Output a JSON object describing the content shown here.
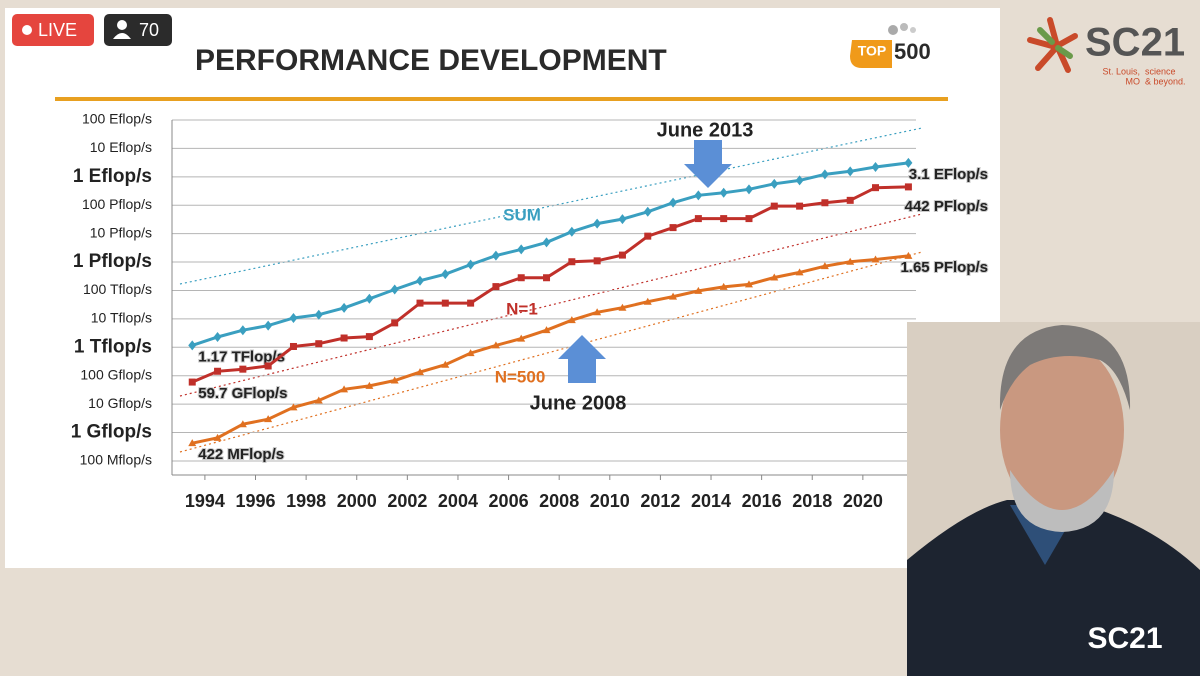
{
  "stream": {
    "live": "LIVE",
    "viewers": "70"
  },
  "logos": {
    "top500_a": "TOP",
    "top500_b": "500",
    "sc21": "SC21",
    "city": "St. Louis,",
    "state": "MO",
    "tag_a": "science",
    "tag_b": "& beyond.",
    "watermark": "SC21"
  },
  "chart_data": {
    "type": "line",
    "title": "PERFORMANCE DEVELOPMENT",
    "log_y": true,
    "grid": true,
    "xlim": [
      1992.7,
      2022.1
    ],
    "xticks": [
      1994,
      1996,
      1998,
      2000,
      2002,
      2004,
      2006,
      2008,
      2010,
      2012,
      2014,
      2016,
      2018,
      2020
    ],
    "ylim": [
      32000000.0,
      1e+20
    ],
    "yticks": [
      {
        "value": 100000000.0,
        "label": "100 Mflop/s"
      },
      {
        "value": 1000000000.0,
        "label": "1 Gflop/s"
      },
      {
        "value": 10000000000.0,
        "label": "10 Gflop/s"
      },
      {
        "value": 100000000000.0,
        "label": "100 Gflop/s"
      },
      {
        "value": 1000000000000.0,
        "label": "1 Tflop/s"
      },
      {
        "value": 10000000000000.0,
        "label": "10 Tflop/s"
      },
      {
        "value": 100000000000000.0,
        "label": "100 Tflop/s"
      },
      {
        "value": 1000000000000000.0,
        "label": "1 Pflop/s"
      },
      {
        "value": 1e+16,
        "label": "10 Pflop/s"
      },
      {
        "value": 1e+17,
        "label": "100 Pflop/s"
      },
      {
        "value": 1e+18,
        "label": "1 Eflop/s"
      },
      {
        "value": 1e+19,
        "label": "10 Eflop/s"
      },
      {
        "value": 1e+20,
        "label": "100 Eflop/s"
      }
    ],
    "x": [
      1993.5,
      1994.5,
      1995.5,
      1996.5,
      1997.5,
      1998.5,
      1999.5,
      2000.5,
      2001.5,
      2002.5,
      2003.5,
      2004.5,
      2005.5,
      2006.5,
      2007.5,
      2008.5,
      2009.5,
      2010.5,
      2011.5,
      2012.5,
      2013.5,
      2014.5,
      2015.5,
      2016.5,
      2017.5,
      2018.5,
      2019.5,
      2020.5,
      2021.8
    ],
    "series": [
      {
        "name": "SUM",
        "color": "#3a9fc0",
        "marker": "diamond",
        "values": [
          1170000000000.0,
          2300000000000.0,
          4000000000000.0,
          5800000000000.0,
          10700000000000.0,
          14000000000000.0,
          24400000000000.0,
          51000000000000.0,
          108000000000000.0,
          220000000000000.0,
          375000000000000.0,
          813000000000000.0,
          1690000000000000.0,
          2790000000000000.0,
          4920000000000000.0,
          1.17e+16,
          2.26e+16,
          3.24e+16,
          5.89e+16,
          1.23e+17,
          2.23e+17,
          2.74e+17,
          3.63e+17,
          5.67e+17,
          7.49e+17,
          1.22e+18,
          1.56e+18,
          2.22e+18,
          3.1e+18
        ],
        "value_labels": [
          "1.17 TFlop/s",
          null,
          null,
          null,
          null,
          null,
          null,
          null,
          null,
          null,
          null,
          null,
          null,
          null,
          null,
          null,
          null,
          null,
          null,
          null,
          null,
          null,
          null,
          null,
          null,
          null,
          null,
          null,
          "3.1 EFlop/s"
        ]
      },
      {
        "name": "N=1",
        "color": "#c0302a",
        "marker": "square",
        "values": [
          59700000000.0,
          143400000000.0,
          170000000000.0,
          220000000000.0,
          1068000000000.0,
          1338000000000.0,
          2121000000000.0,
          2379000000000.0,
          7226000000000.0,
          35860000000000.0,
          35860000000000.0,
          35860000000000.0,
          136800000000000.0,
          280600000000000.0,
          280600000000000.0,
          1026000000000000.0,
          1105000000000000.0,
          1759000000000000.0,
          8162000000000000.0,
          1.632e+16,
          3.386e+16,
          3.386e+16,
          3.386e+16,
          9.301e+16,
          9.301e+16,
          1.223e+17,
          1.486e+17,
          4.155e+17,
          4.42e+17
        ],
        "value_labels": [
          "59.7 GFlop/s",
          null,
          null,
          null,
          null,
          null,
          null,
          null,
          null,
          null,
          null,
          null,
          null,
          null,
          null,
          null,
          null,
          null,
          null,
          null,
          null,
          null,
          null,
          null,
          null,
          null,
          null,
          null,
          "442 PFlop/s"
        ]
      },
      {
        "name": "N=500",
        "color": "#e07020",
        "marker": "triangle",
        "values": [
          422000000.0,
          650000000.0,
          1960000000.0,
          2950000000.0,
          7700000000.0,
          13400000000.0,
          33100000000.0,
          43800000000.0,
          67800000000.0,
          134300000000.0,
          244000000000.0,
          624000000000.0,
          1166000000000.0,
          2026000000000.0,
          4005000000000.0,
          9000000000000.0,
          17100000000000.0,
          24700000000000.0,
          40100000000000.0,
          60800000000000.0,
          96600000000000.0,
          133700000000000.0,
          164000000000000.0,
          286000000000000.0,
          432000000000000.0,
          716000000000000.0,
          1022000000000000.0,
          1228000000000000.0,
          1650000000000000.0
        ],
        "value_labels": [
          "422 MFlop/s",
          null,
          null,
          null,
          null,
          null,
          null,
          null,
          null,
          null,
          null,
          null,
          null,
          null,
          null,
          null,
          null,
          null,
          null,
          null,
          null,
          null,
          null,
          null,
          null,
          null,
          null,
          null,
          "1.65 PFlop/s"
        ]
      }
    ],
    "annotations": [
      "June 2013",
      "June 2008"
    ]
  }
}
